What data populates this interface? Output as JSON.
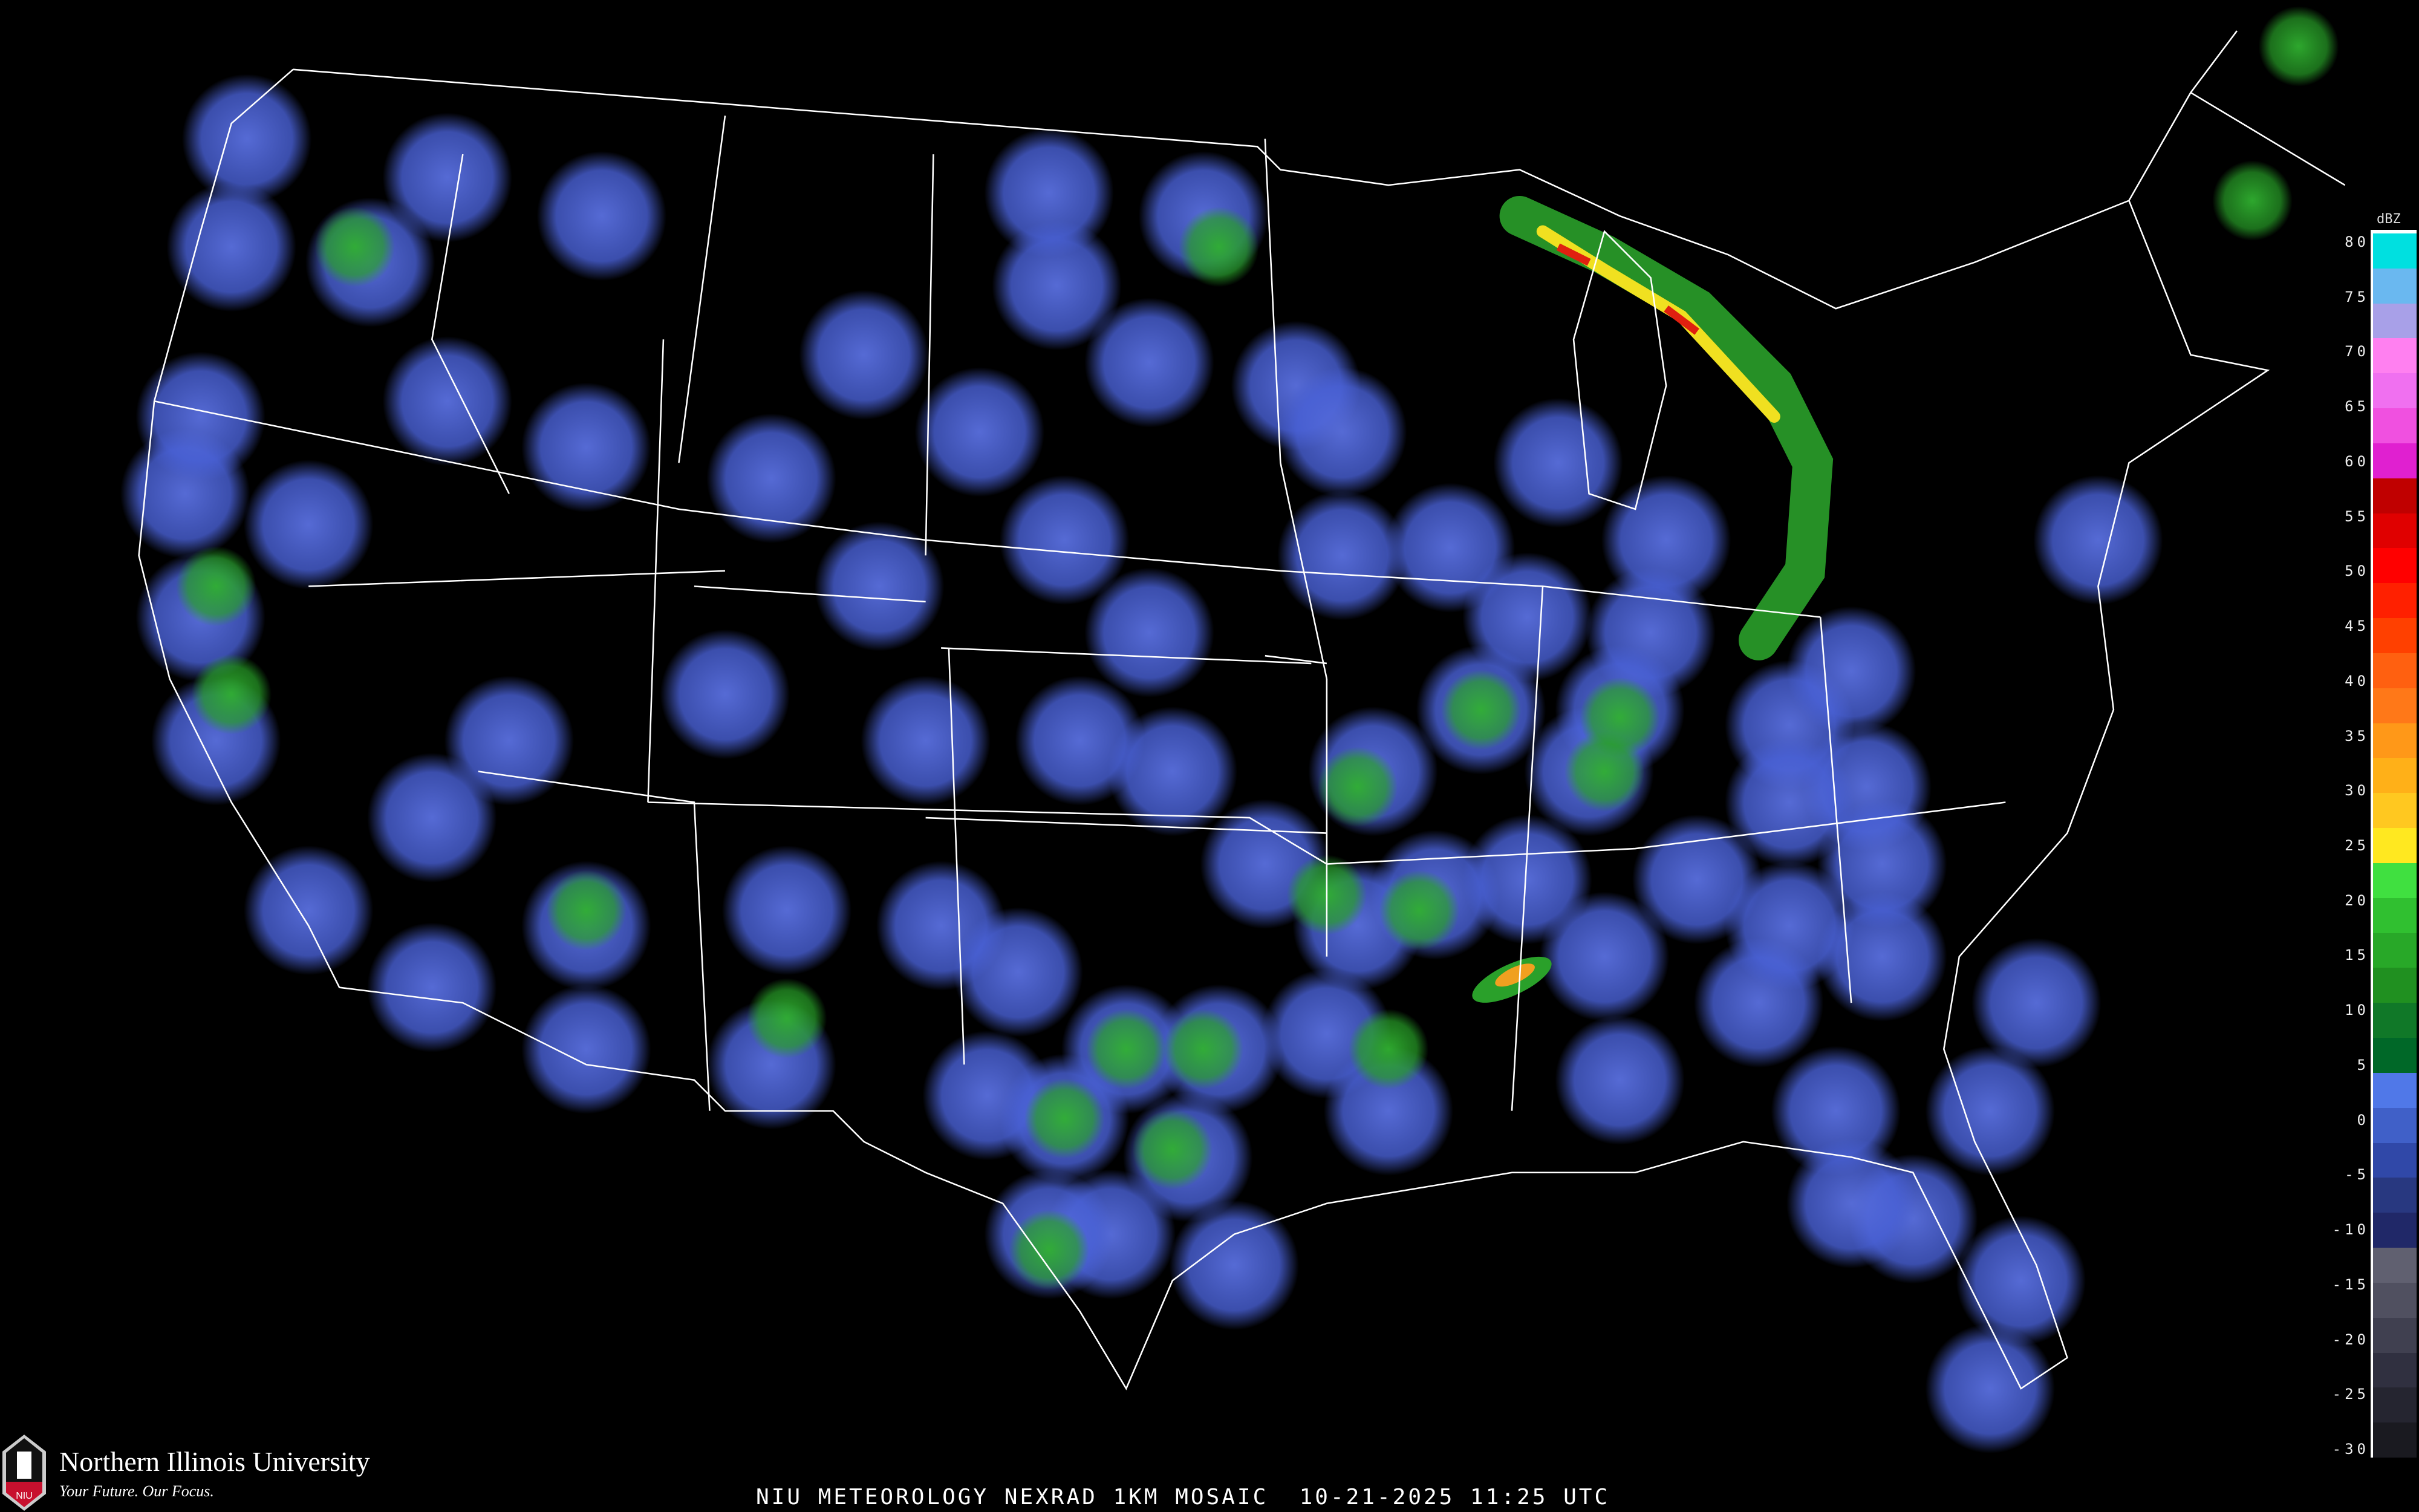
{
  "title": "NIU METEOROLOGY NEXRAD 1KM MOSAIC",
  "date": "10-21-2025",
  "time": "11:25 UTC",
  "logo": {
    "name": "Northern Illinois University",
    "tagline": "Your Future. Our Focus.",
    "monogram": "NIU"
  },
  "legend": {
    "unit": "dBZ",
    "labels": [
      "80",
      "75",
      "70",
      "65",
      "60",
      "55",
      "50",
      "45",
      "40",
      "35",
      "30",
      "25",
      "20",
      "15",
      "10",
      "5",
      "0",
      "-5",
      "-10",
      "-15",
      "-20",
      "-25",
      "-30"
    ],
    "colors": [
      "#00e0e0",
      "#6ab8f0",
      "#a8a0e8",
      "#ff80f0",
      "#f070f0",
      "#f050e0",
      "#e020d0",
      "#c00000",
      "#e00000",
      "#ff0000",
      "#ff2000",
      "#ff4000",
      "#ff6010",
      "#ff7818",
      "#ff9818",
      "#ffb018",
      "#ffc820",
      "#ffe820",
      "#40e040",
      "#30c030",
      "#28a828",
      "#209020",
      "#107828",
      "#006828",
      "#5078e8",
      "#4060c8",
      "#3048a8",
      "#283880",
      "#202868",
      "#606070",
      "#505060",
      "#404050",
      "#303040",
      "#252530",
      "#1a1a20"
    ]
  },
  "colors": {
    "blue_echo": "#4a62d8",
    "green_echo": "#2aa02a",
    "yellow_echo": "#f0e020",
    "red_echo": "#e02010",
    "state_lines": "#ffffff",
    "county_lines": "#555555",
    "roads": "#8a4a20"
  }
}
